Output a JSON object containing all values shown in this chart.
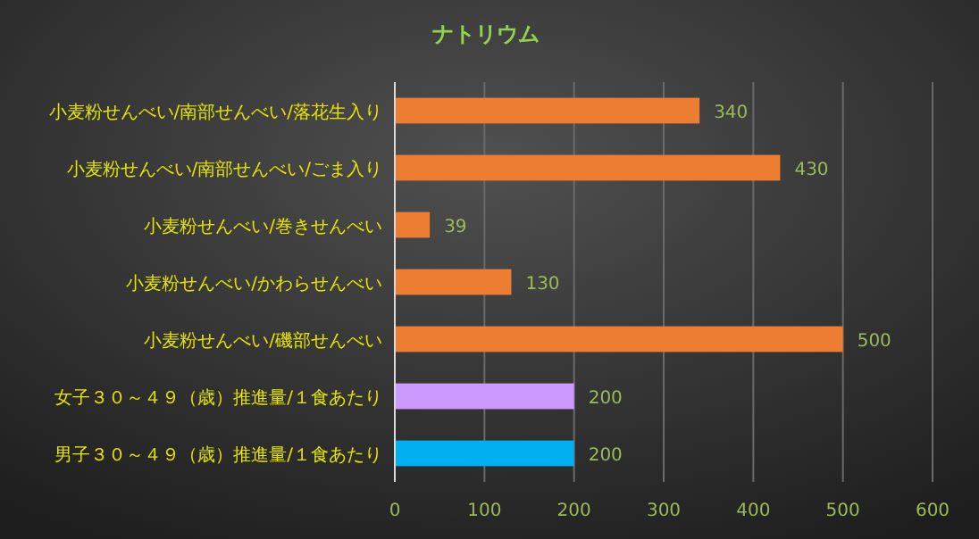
{
  "chart_data": {
    "type": "bar",
    "orientation": "horizontal",
    "title": "ナトリウム",
    "categories": [
      "小麦粉せんべい/南部せんべい/落花生入り",
      "小麦粉せんべい/南部せんべい/ごま入り",
      "小麦粉せんべい/巻きせんべい",
      "小麦粉せんべい/かわらせんべい",
      "小麦粉せんべい/磯部せんべい",
      "女子３０～４９（歳）推進量/１食あたり",
      "男子３０～４９（歳）推進量/１食あたり"
    ],
    "values": [
      340,
      430,
      39,
      130,
      500,
      200,
      200
    ],
    "colors": [
      "#ed7d31",
      "#ed7d31",
      "#ed7d31",
      "#ed7d31",
      "#ed7d31",
      "#cc99ff",
      "#00b0f0"
    ],
    "xlim": [
      0,
      600
    ],
    "xticks": [
      0,
      100,
      200,
      300,
      400,
      500,
      600
    ],
    "grid": "x",
    "data_labels": true
  }
}
